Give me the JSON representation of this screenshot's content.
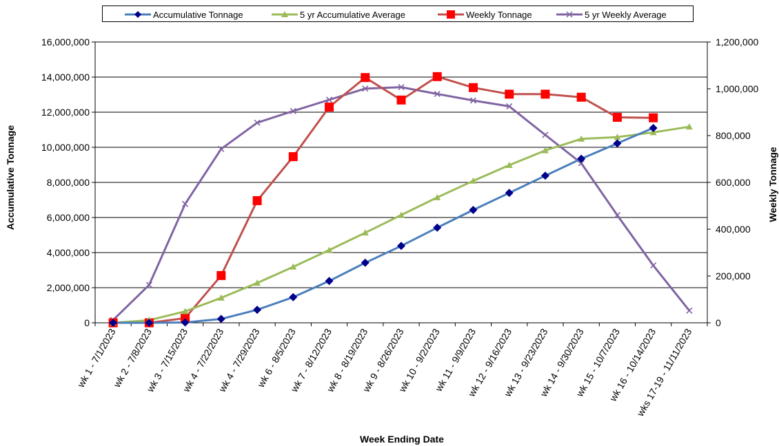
{
  "chart_data": {
    "type": "line",
    "xlabel": "Week Ending Date",
    "ylabel": "Accumulative Tonnage",
    "y2label": "Weekly Tonnage",
    "ylim": [
      0,
      16000000
    ],
    "y2lim": [
      0,
      1200000
    ],
    "yticks": [
      "0",
      "2,000,000",
      "4,000,000",
      "6,000,000",
      "8,000,000",
      "10,000,000",
      "12,000,000",
      "14,000,000",
      "16,000,000"
    ],
    "y2ticks": [
      "0",
      "200,000",
      "400,000",
      "600,000",
      "800,000",
      "1,000,000",
      "1,200,000"
    ],
    "grid": true,
    "legend_position": "top",
    "categories": [
      "wk 1 - 7/1/2023",
      "wk 2 - 7/8/2023",
      "wk 3 - 7/15/2023",
      "wk 4 - 7/22/2023",
      "wk 4 - 7/29/2023",
      "wk 6 - 8/5/2023",
      "wk 7 - 8/12/2023",
      "wk 8 - 8/19/2023",
      "wk 9 - 8/26/2023",
      "wk 10 - 9/2/2023",
      "wk 11 - 9/9/2023",
      "wk 12 - 9/16/2023",
      "wk 13 - 9/23/2023",
      "wk 14 - 9/30/2023",
      "wk 15 - 10/7/2023",
      "wk 16 - 10/14/2023",
      "wks 17-19 - 11/11/2023"
    ],
    "series": [
      {
        "name": "Accumulative Tonnage",
        "axis": "left",
        "color": "#4A7EBB",
        "marker": "diamond",
        "marker_color": "#00008B",
        "values": [
          0,
          0,
          20000,
          220000,
          740000,
          1460000,
          2380000,
          3420000,
          4380000,
          5420000,
          6430000,
          7400000,
          8380000,
          9350000,
          10220000,
          11100000,
          null
        ]
      },
      {
        "name": "5 yr Accumulative Average",
        "axis": "left",
        "color": "#9BBB59",
        "marker": "triangle",
        "marker_color": "#9BBB59",
        "values": [
          0,
          150000,
          650000,
          1420000,
          2270000,
          3190000,
          4140000,
          5130000,
          6140000,
          7140000,
          8090000,
          8980000,
          9820000,
          10480000,
          10580000,
          10850000,
          11170000
        ]
      },
      {
        "name": "Weekly Tonnage",
        "axis": "right",
        "color": "#C0504D",
        "marker": "square",
        "marker_color": "#FF0000",
        "values": [
          0,
          0,
          20000,
          202000,
          522000,
          710000,
          922000,
          1048000,
          952000,
          1052000,
          1005000,
          977000,
          977000,
          964000,
          878000,
          876000,
          null
        ]
      },
      {
        "name": "5 yr Weekly Average",
        "axis": "right",
        "color": "#8064A2",
        "marker": "x",
        "marker_color": "#8064A2",
        "values": [
          12000,
          162000,
          508000,
          743000,
          855000,
          905000,
          953000,
          1001000,
          1007000,
          978000,
          950000,
          925000,
          803000,
          682000,
          460000,
          245000,
          52000
        ]
      }
    ]
  }
}
